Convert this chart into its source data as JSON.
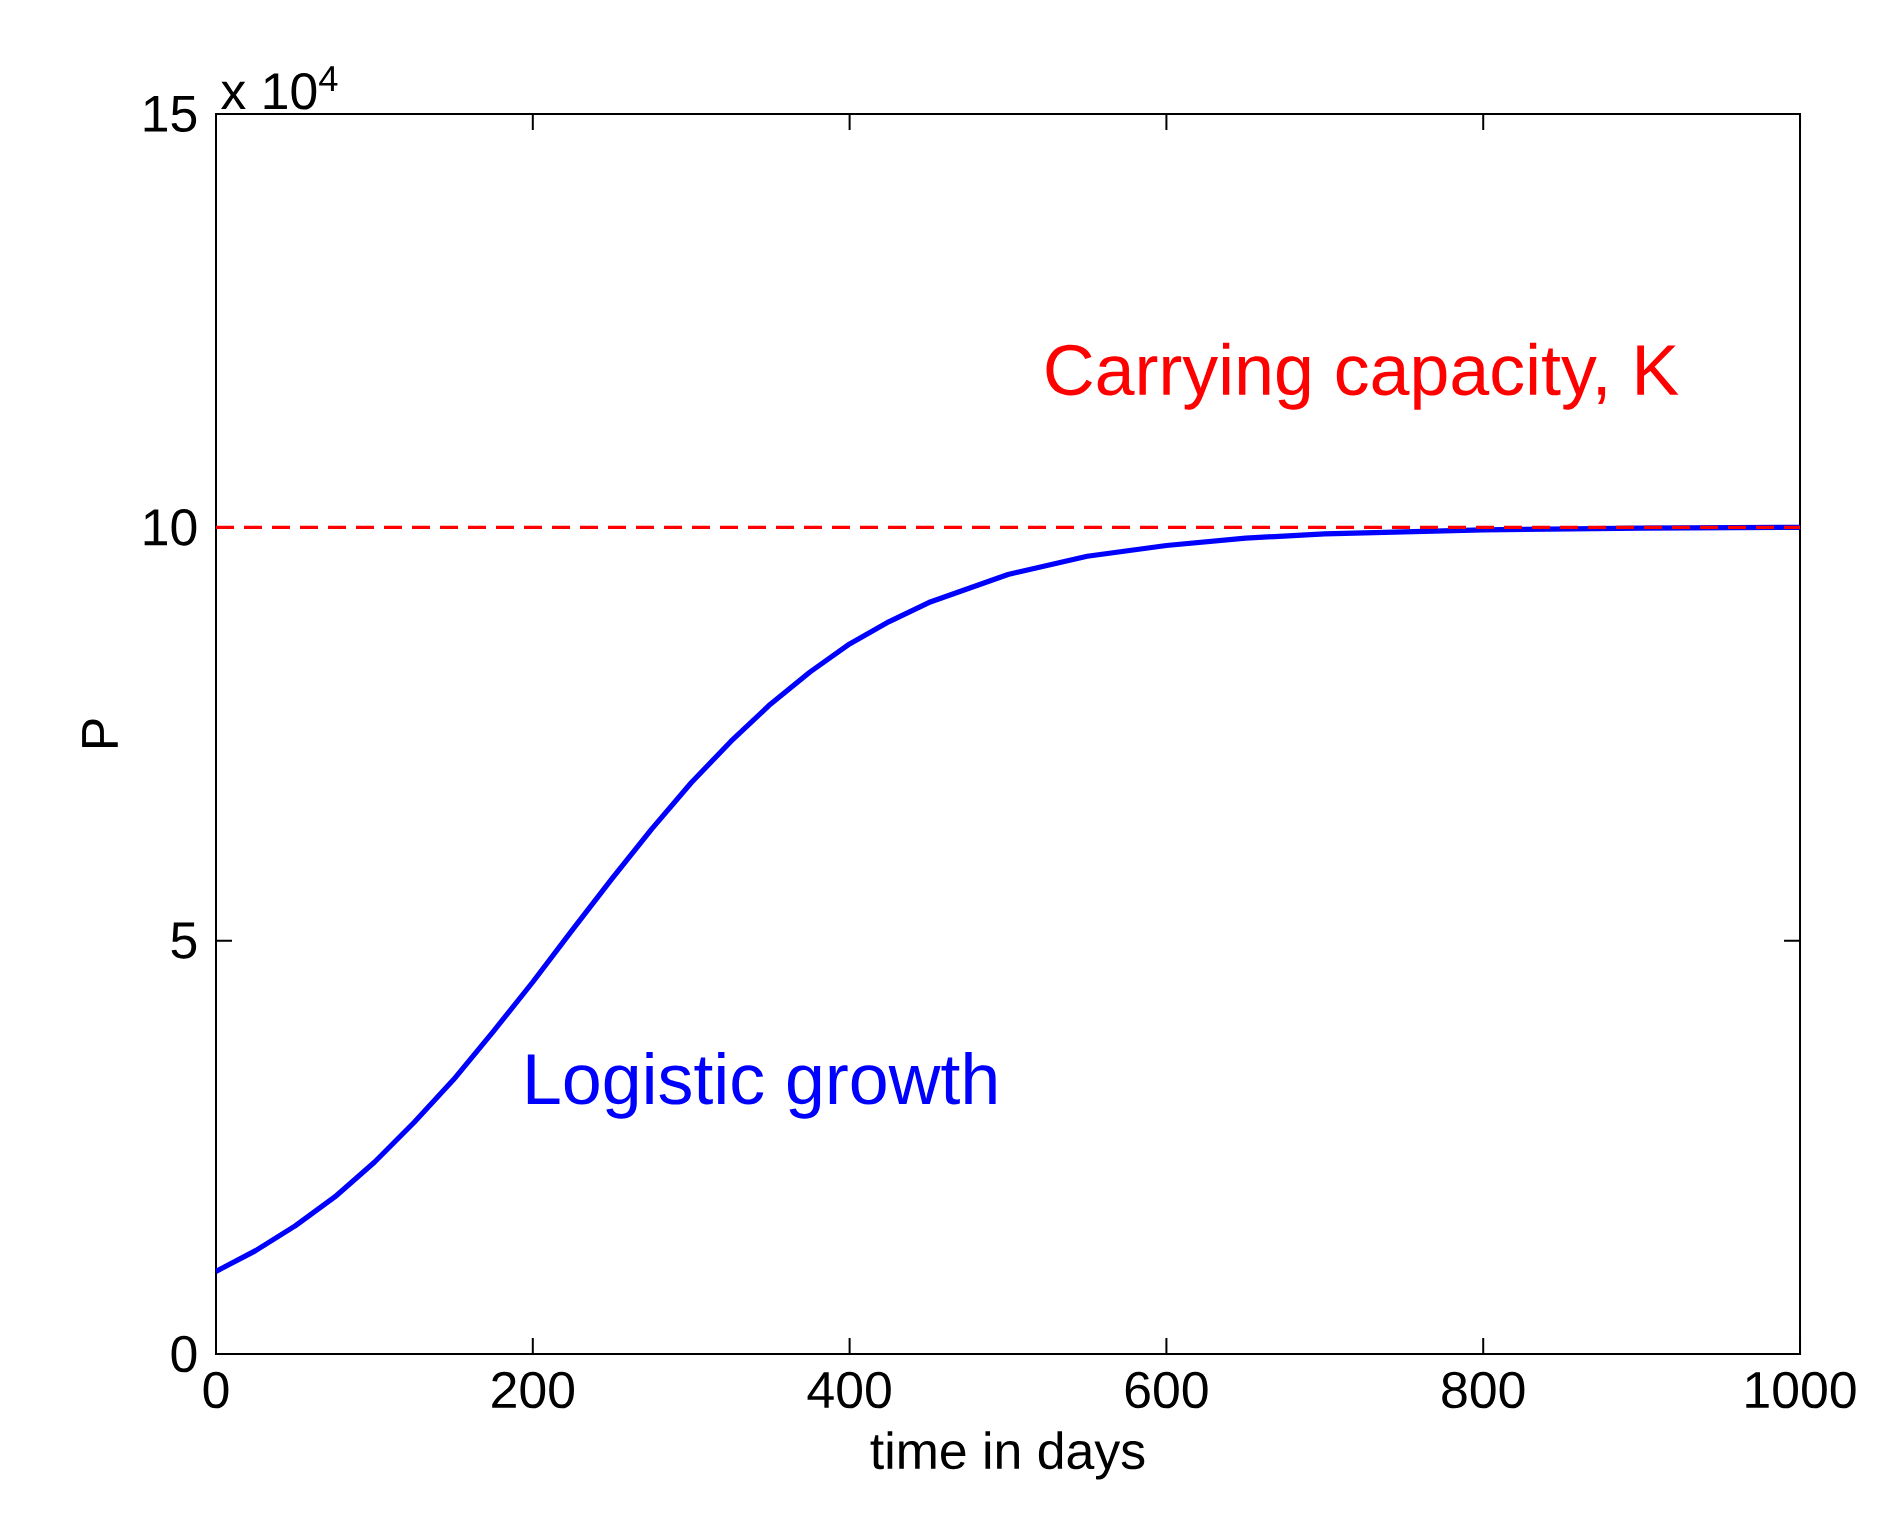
{
  "chart_data": {
    "type": "line",
    "xlabel": "time in days",
    "ylabel": "P",
    "annotations": [
      "x 10$^{4}$"
    ],
    "x": [
      0,
      25,
      50,
      75,
      100,
      125,
      150,
      175,
      200,
      225,
      250,
      275,
      300,
      325,
      350,
      375,
      400,
      425,
      450,
      500,
      550,
      600,
      650,
      700,
      800,
      900,
      1000
    ],
    "series": [
      {
        "name": "Logistic growth",
        "color": "#0000ff",
        "values": [
          1.0,
          1.25,
          1.55,
          1.9,
          2.32,
          2.8,
          3.32,
          3.9,
          4.5,
          5.13,
          5.75,
          6.35,
          6.91,
          7.41,
          7.86,
          8.25,
          8.59,
          8.86,
          9.09,
          9.43,
          9.65,
          9.78,
          9.87,
          9.92,
          9.97,
          9.99,
          10.0
        ]
      }
    ],
    "ref_lines": [
      {
        "axis": "y",
        "value": 10,
        "label": "Carrying capacity, K",
        "color": "#ff0000",
        "line_style": "dashed"
      }
    ],
    "xlim": [
      0,
      1000
    ],
    "ylim": [
      0,
      15
    ],
    "xticks": [
      0,
      200,
      400,
      600,
      800,
      1000
    ],
    "yticks": [
      0,
      5,
      10,
      15
    ],
    "grid": false,
    "marker": "none",
    "line_style": "solid"
  }
}
